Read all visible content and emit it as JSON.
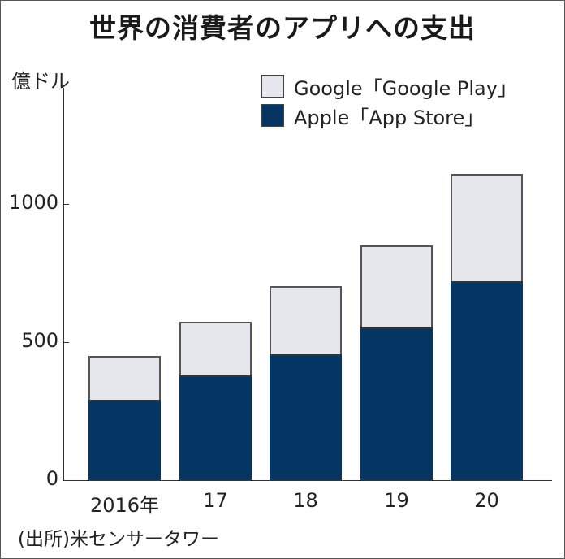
{
  "title": "世界の消費者のアプリへの支出",
  "unit_label": "億ドル",
  "legend": [
    {
      "label": "Google「Google Play」",
      "color": "#e6e7ec",
      "series": "google"
    },
    {
      "label": "Apple「App Store」",
      "color": "#043563",
      "series": "apple"
    }
  ],
  "y_ticks": [
    {
      "label": "1000",
      "value": 1000
    },
    {
      "label": "500",
      "value": 500
    },
    {
      "label": "0",
      "value": 0
    }
  ],
  "x_labels": [
    "2016年",
    "17",
    "18",
    "19",
    "20"
  ],
  "source": "(出所)米センサータワー",
  "chart_data": {
    "type": "bar",
    "stacked": true,
    "title": "世界の消費者のアプリへの支出",
    "xlabel": "",
    "ylabel": "億ドル",
    "categories": [
      "2016年",
      "17",
      "18",
      "19",
      "20"
    ],
    "series": [
      {
        "name": "Apple「App Store」",
        "color": "#043563",
        "values": [
          290,
          378,
          457,
          554,
          721
        ]
      },
      {
        "name": "Google「Google Play」",
        "color": "#e6e7ec",
        "values": [
          159,
          197,
          247,
          296,
          387
        ]
      }
    ],
    "totals": [
      449,
      575,
      704,
      850,
      1108
    ],
    "ylim": [
      0,
      1420
    ],
    "yticks": [
      0,
      500,
      1000
    ],
    "grid": false,
    "legend_position": "top-right",
    "source": "(出所)米センサータワー"
  }
}
